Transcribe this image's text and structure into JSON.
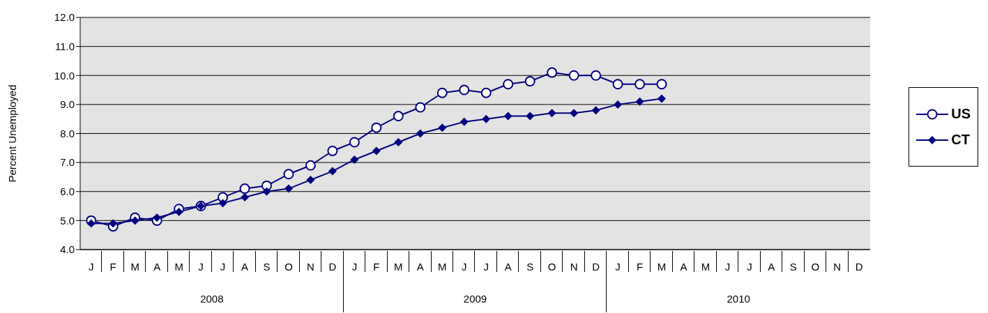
{
  "chart_data": {
    "type": "line",
    "ylabel": "Percent Unemployed",
    "categories": [
      "J",
      "F",
      "M",
      "A",
      "M",
      "J",
      "J",
      "A",
      "S",
      "O",
      "N",
      "D",
      "J",
      "F",
      "M",
      "A",
      "M",
      "J",
      "J",
      "A",
      "S",
      "O",
      "N",
      "D",
      "J",
      "F",
      "M",
      "A",
      "M",
      "J",
      "J",
      "A",
      "S",
      "O",
      "N",
      "D"
    ],
    "annotations": [
      "2008",
      "2009",
      "2010"
    ],
    "series": [
      {
        "name": "US",
        "color": "#000080",
        "marker": "circle",
        "values": [
          5.0,
          4.8,
          5.1,
          5.0,
          5.4,
          5.5,
          5.8,
          6.1,
          6.2,
          6.6,
          6.9,
          7.4,
          7.7,
          8.2,
          8.6,
          8.9,
          9.4,
          9.5,
          9.4,
          9.7,
          9.8,
          10.1,
          10.0,
          10.0,
          9.7,
          9.7,
          9.7,
          null,
          null,
          null,
          null,
          null,
          null,
          null,
          null,
          null
        ]
      },
      {
        "name": "CT",
        "color": "#000080",
        "marker": "diamond",
        "values": [
          4.9,
          4.9,
          5.0,
          5.1,
          5.3,
          5.5,
          5.6,
          5.8,
          6.0,
          6.1,
          6.4,
          6.7,
          7.1,
          7.4,
          7.7,
          8.0,
          8.2,
          8.4,
          8.5,
          8.6,
          8.6,
          8.7,
          8.7,
          8.8,
          9.0,
          9.1,
          9.2,
          null,
          null,
          null,
          null,
          null,
          null,
          null,
          null,
          null
        ]
      }
    ],
    "ylim": [
      4.0,
      12.0
    ],
    "yticks": [
      {
        "value": 4,
        "label": "4.0"
      },
      {
        "value": 5,
        "label": "5.0"
      },
      {
        "value": 6,
        "label": "6.0"
      },
      {
        "value": 7,
        "label": "7.0"
      },
      {
        "value": 8,
        "label": "8.0"
      },
      {
        "value": 9,
        "label": "9.0"
      },
      {
        "value": 10,
        "label": "10.0"
      },
      {
        "value": 11,
        "label": "11.0"
      },
      {
        "value": 12,
        "label": "12.0"
      }
    ],
    "grid": "y",
    "legend": "right",
    "line_style": "solid"
  }
}
